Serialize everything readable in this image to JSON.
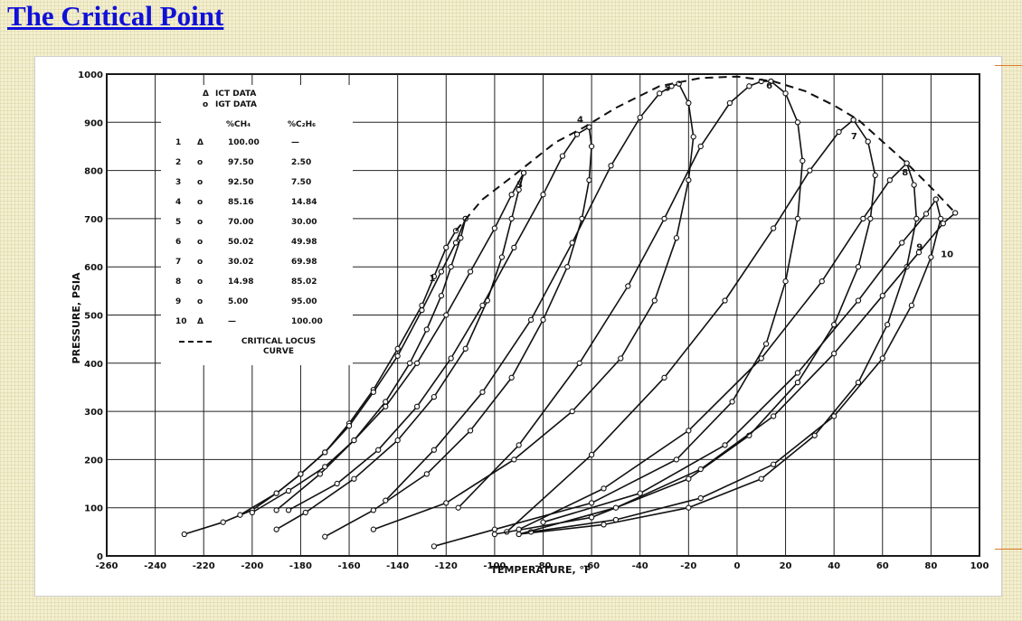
{
  "page": {
    "title": "The Critical Point"
  },
  "colors": {
    "title": "#1010d8",
    "accent_line": "#e07a2a",
    "ink": "#111111"
  },
  "chart_data": {
    "type": "line",
    "title": "",
    "xlabel": "TEMPERATURE, °F",
    "ylabel": "PRESSURE, PSIA",
    "xlim": [
      -260,
      100
    ],
    "ylim": [
      0,
      1000
    ],
    "grid": true,
    "legend_position": "top-left",
    "x_ticks": [
      -260,
      -240,
      -220,
      -200,
      -180,
      -160,
      -140,
      -120,
      -100,
      -80,
      -60,
      -40,
      -20,
      0,
      20,
      40,
      60,
      80,
      100
    ],
    "y_ticks": [
      0,
      100,
      200,
      300,
      400,
      500,
      600,
      700,
      800,
      900,
      1000
    ],
    "marker_legend": [
      {
        "symbol": "Δ",
        "label": "ICT  DATA"
      },
      {
        "symbol": "o",
        "label": "IGT  DATA"
      }
    ],
    "composition_header": [
      "%CH₄",
      "%C₂H₆"
    ],
    "compositions": [
      {
        "id": "1",
        "symbol": "Δ",
        "ch4": "100.00",
        "c2h6": "—"
      },
      {
        "id": "2",
        "symbol": "o",
        "ch4": "97.50",
        "c2h6": "2.50"
      },
      {
        "id": "3",
        "symbol": "o",
        "ch4": "92.50",
        "c2h6": "7.50"
      },
      {
        "id": "4",
        "symbol": "o",
        "ch4": "85.16",
        "c2h6": "14.84"
      },
      {
        "id": "5",
        "symbol": "o",
        "ch4": "70.00",
        "c2h6": "30.00"
      },
      {
        "id": "6",
        "symbol": "o",
        "ch4": "50.02",
        "c2h6": "49.98"
      },
      {
        "id": "7",
        "symbol": "o",
        "ch4": "30.02",
        "c2h6": "69.98"
      },
      {
        "id": "8",
        "symbol": "o",
        "ch4": "14.98",
        "c2h6": "85.02"
      },
      {
        "id": "9",
        "symbol": "o",
        "ch4": "5.00",
        "c2h6": "95.00"
      },
      {
        "id": "10",
        "symbol": "Δ",
        "ch4": "—",
        "c2h6": "100.00"
      }
    ],
    "critical_locus_label": [
      "CRITICAL  LOCUS",
      "CURVE"
    ],
    "critical_locus": {
      "x": [
        -116,
        -105,
        -92,
        -75,
        -63,
        -50,
        -32,
        -15,
        0,
        15,
        28,
        40,
        50,
        60,
        70,
        80,
        90
      ],
      "y": [
        675,
        740,
        790,
        858,
        890,
        930,
        975,
        992,
        995,
        985,
        965,
        935,
        905,
        860,
        815,
        765,
        712
      ]
    },
    "series": [
      {
        "name": "1",
        "label_at": [
          -127,
          570
        ],
        "x": [
          -228,
          -212,
          -200,
          -190,
          -180,
          -170,
          -160,
          -150,
          -140,
          -130,
          -125,
          -120,
          -116
        ],
        "y": [
          45,
          70,
          95,
          130,
          170,
          215,
          275,
          345,
          430,
          520,
          580,
          640,
          675
        ]
      },
      {
        "name": "2",
        "x": [
          -205,
          -190,
          -180,
          -170,
          -160,
          -150,
          -140,
          -130,
          -122,
          -116,
          -112
        ],
        "y": [
          85,
          130,
          170,
          215,
          270,
          340,
          415,
          510,
          590,
          650,
          700
        ],
        "bx": [
          -112,
          -114,
          -118,
          -122,
          -128,
          -135,
          -145,
          -158,
          -172,
          -190
        ],
        "by": [
          700,
          660,
          600,
          540,
          470,
          400,
          320,
          240,
          170,
          95
        ]
      },
      {
        "name": "3",
        "label_at": [
          -91,
          765
        ],
        "x": [
          -200,
          -185,
          -170,
          -158,
          -145,
          -132,
          -120,
          -110,
          -100,
          -93,
          -88
        ],
        "y": [
          90,
          135,
          185,
          240,
          310,
          400,
          500,
          590,
          680,
          750,
          795
        ],
        "bx": [
          -88,
          -90,
          -93,
          -97,
          -103,
          -112,
          -125,
          -140,
          -158,
          -178,
          -190
        ],
        "by": [
          795,
          760,
          700,
          620,
          530,
          430,
          330,
          240,
          160,
          90,
          55
        ]
      },
      {
        "name": "4",
        "label_at": [
          -66,
          900
        ],
        "x": [
          -185,
          -165,
          -148,
          -132,
          -118,
          -105,
          -92,
          -80,
          -72,
          -66,
          -61
        ],
        "y": [
          95,
          150,
          220,
          310,
          410,
          520,
          640,
          750,
          830,
          875,
          890
        ],
        "bx": [
          -61,
          -60,
          -61,
          -64,
          -70,
          -80,
          -93,
          -110,
          -128,
          -150,
          -170
        ],
        "by": [
          890,
          850,
          780,
          700,
          600,
          490,
          370,
          260,
          170,
          95,
          40
        ]
      },
      {
        "name": "5",
        "label_at": [
          -30,
          965
        ],
        "x": [
          -145,
          -125,
          -105,
          -85,
          -68,
          -52,
          -40,
          -32,
          -27,
          -24
        ],
        "y": [
          115,
          220,
          340,
          490,
          650,
          810,
          910,
          960,
          975,
          980
        ],
        "bx": [
          -24,
          -20,
          -18,
          -20,
          -25,
          -34,
          -48,
          -68,
          -92,
          -120,
          -150
        ],
        "by": [
          980,
          940,
          870,
          780,
          660,
          530,
          410,
          300,
          200,
          110,
          55
        ]
      },
      {
        "name": "6",
        "label_at": [
          12,
          970
        ],
        "x": [
          -115,
          -90,
          -65,
          -45,
          -30,
          -15,
          -3,
          5,
          10,
          14
        ],
        "y": [
          100,
          230,
          400,
          560,
          700,
          850,
          940,
          975,
          985,
          985
        ],
        "bx": [
          14,
          20,
          25,
          27,
          25,
          20,
          12,
          -2,
          -25,
          -60,
          -100,
          -125
        ],
        "by": [
          985,
          960,
          900,
          820,
          700,
          570,
          440,
          320,
          200,
          110,
          55,
          20
        ]
      },
      {
        "name": "7",
        "label_at": [
          47,
          865
        ],
        "x": [
          -95,
          -60,
          -30,
          -5,
          15,
          30,
          42,
          48
        ],
        "y": [
          50,
          210,
          370,
          530,
          680,
          800,
          880,
          905
        ],
        "bx": [
          48,
          54,
          57,
          55,
          50,
          40,
          25,
          5,
          -20,
          -60,
          -100
        ],
        "by": [
          905,
          860,
          790,
          700,
          600,
          480,
          360,
          250,
          160,
          80,
          45
        ]
      },
      {
        "name": "8",
        "label_at": [
          68,
          790
        ],
        "x": [
          -90,
          -55,
          -20,
          10,
          35,
          52,
          63,
          70
        ],
        "y": [
          55,
          140,
          260,
          410,
          570,
          700,
          780,
          815
        ],
        "bx": [
          70,
          73,
          74,
          70,
          62,
          50,
          32,
          10,
          -20,
          -55,
          -90
        ],
        "by": [
          815,
          770,
          700,
          600,
          480,
          360,
          250,
          160,
          100,
          65,
          45
        ]
      },
      {
        "name": "9",
        "label_at": [
          74,
          635
        ],
        "x": [
          -80,
          -40,
          -5,
          25,
          50,
          68,
          78,
          82
        ],
        "y": [
          70,
          130,
          230,
          380,
          530,
          650,
          710,
          740
        ],
        "bx": [
          82,
          84,
          80,
          72,
          60,
          40,
          15,
          -15,
          -50,
          -85
        ],
        "by": [
          740,
          700,
          620,
          520,
          410,
          290,
          190,
          120,
          75,
          50
        ]
      },
      {
        "name": "10",
        "label_at": [
          84,
          620
        ],
        "x": [
          -90,
          -50,
          -15,
          15,
          40,
          60,
          75,
          85,
          90
        ],
        "y": [
          45,
          100,
          180,
          290,
          420,
          540,
          630,
          690,
          712
        ]
      }
    ]
  }
}
